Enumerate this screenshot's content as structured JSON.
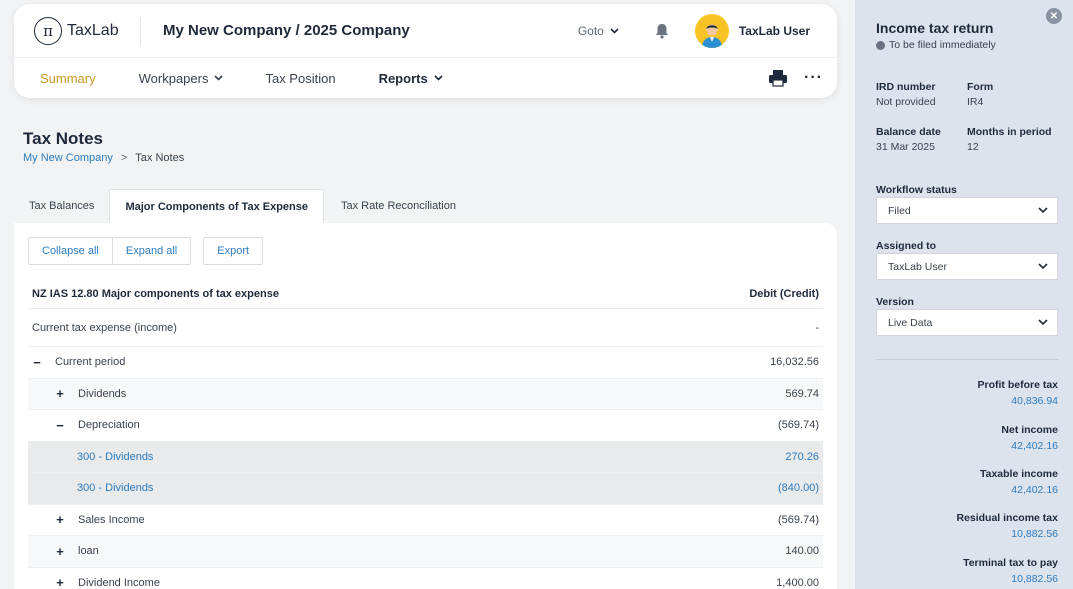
{
  "header": {
    "logo_text": "TaxLab",
    "logo_symbol": "π",
    "company": "My New Company / 2025 Company",
    "goto_label": "Goto",
    "user_name": "TaxLab User"
  },
  "nav": {
    "summary": "Summary",
    "workpapers": "Workpapers",
    "tax_position": "Tax Position",
    "reports": "Reports",
    "more": "···"
  },
  "page": {
    "title": "Tax Notes",
    "breadcrumb": {
      "link": "My New Company",
      "sep": ">",
      "current": "Tax Notes"
    }
  },
  "tabs": [
    {
      "label": "Tax Balances"
    },
    {
      "label": "Major Components of Tax Expense"
    },
    {
      "label": "Tax Rate Reconciliation"
    }
  ],
  "toolbar": {
    "collapse_all": "Collapse all",
    "expand_all": "Expand all",
    "export": "Export"
  },
  "table": {
    "header_left": "NZ IAS 12.80 Major components of tax expense",
    "header_right": "Debit (Credit)",
    "rows": [
      {
        "label": "Current tax expense (income)",
        "value": "-",
        "toggle": ""
      },
      {
        "label": "Current period",
        "value": "16,032.56",
        "toggle": "−"
      },
      {
        "label": "Dividends",
        "value": "569.74",
        "toggle": "+"
      },
      {
        "label": "Depreciation",
        "value": "(569.74)",
        "toggle": "−"
      },
      {
        "label": "300 - Dividends",
        "value": "270.26"
      },
      {
        "label": "300 - Dividends",
        "value": "(840.00)"
      },
      {
        "label": "Sales Income",
        "value": "(569.74)",
        "toggle": "+"
      },
      {
        "label": "loan",
        "value": "140.00",
        "toggle": "+"
      },
      {
        "label": "Dividend Income",
        "value": "1,400.00",
        "toggle": "+"
      }
    ]
  },
  "panel": {
    "title": "Income tax return",
    "subtitle": "To be filed immediately",
    "ird_number_label": "IRD number",
    "ird_number_value": "Not provided",
    "form_label": "Form",
    "form_value": "IR4",
    "balance_date_label": "Balance date",
    "balance_date_value": "31 Mar 2025",
    "months_label": "Months in period",
    "months_value": "12",
    "workflow_label": "Workflow status",
    "workflow_value": "Filed",
    "assigned_label": "Assigned to",
    "assigned_value": "TaxLab User",
    "version_label": "Version",
    "version_value": "Live Data",
    "metrics": [
      {
        "label": "Profit before tax",
        "value": "40,836.94"
      },
      {
        "label": "Net income",
        "value": "42,402.16"
      },
      {
        "label": "Taxable income",
        "value": "42,402.16"
      },
      {
        "label": "Residual income tax",
        "value": "10,882.56"
      },
      {
        "label": "Terminal tax to pay",
        "value": "10,882.56"
      }
    ]
  },
  "colors": {
    "accent": "#c9972b",
    "link": "#2b7bbf",
    "panel_bg": "#dde3ec",
    "avatar_bg": "#f7c325"
  }
}
